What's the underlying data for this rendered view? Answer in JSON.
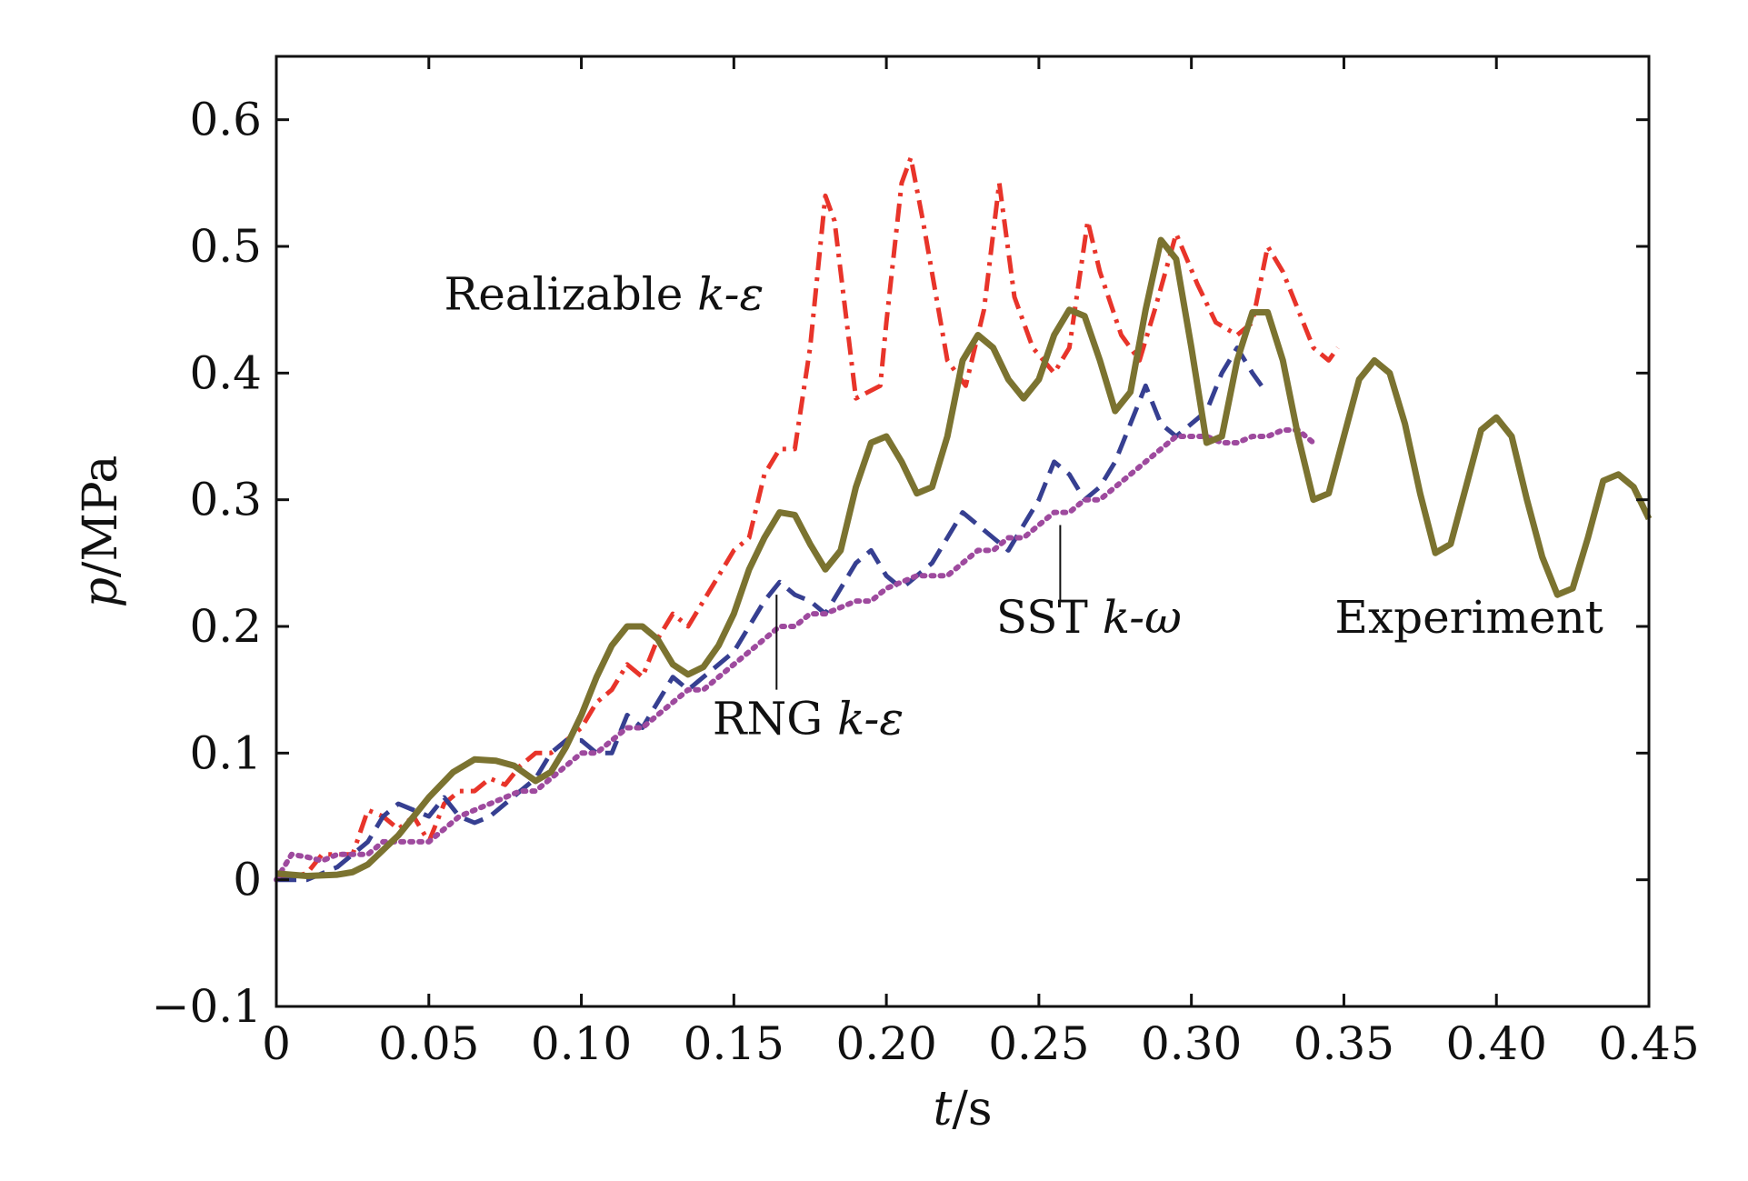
{
  "chart_data": {
    "type": "line",
    "xlabel": {
      "var": "t",
      "unit": "/s"
    },
    "ylabel": {
      "var": "p",
      "unit": "/MPa"
    },
    "xlim": [
      0,
      0.45
    ],
    "ylim": [
      -0.1,
      0.65
    ],
    "xticks": [
      0,
      0.05,
      0.1,
      0.15,
      0.2,
      0.25,
      0.3,
      0.35,
      0.4,
      0.45
    ],
    "xtick_labels": [
      "0",
      "0.05",
      "0.10",
      "0.15",
      "0.20",
      "0.25",
      "0.30",
      "0.35",
      "0.40",
      "0.45"
    ],
    "yticks": [
      -0.1,
      0,
      0.1,
      0.2,
      0.3,
      0.4,
      0.5,
      0.6
    ],
    "ytick_labels": [
      "−0.1",
      "0",
      "0.1",
      "0.2",
      "0.3",
      "0.4",
      "0.5",
      "0.6"
    ],
    "grid": false,
    "legend": "inline labels",
    "series": [
      {
        "name": "Realizable k-ε",
        "label": {
          "text": "Realizable ",
          "italic": "k-ε"
        },
        "color": "#e8342a",
        "style": "dashdot",
        "points": [
          [
            0,
            0
          ],
          [
            0.01,
            0.005
          ],
          [
            0.015,
            0.02
          ],
          [
            0.02,
            0.02
          ],
          [
            0.025,
            0.02
          ],
          [
            0.03,
            0.055
          ],
          [
            0.035,
            0.05
          ],
          [
            0.04,
            0.04
          ],
          [
            0.045,
            0.05
          ],
          [
            0.05,
            0.03
          ],
          [
            0.055,
            0.06
          ],
          [
            0.06,
            0.07
          ],
          [
            0.065,
            0.07
          ],
          [
            0.07,
            0.08
          ],
          [
            0.075,
            0.075
          ],
          [
            0.08,
            0.09
          ],
          [
            0.085,
            0.1
          ],
          [
            0.09,
            0.1
          ],
          [
            0.095,
            0.11
          ],
          [
            0.1,
            0.12
          ],
          [
            0.105,
            0.14
          ],
          [
            0.11,
            0.15
          ],
          [
            0.115,
            0.17
          ],
          [
            0.12,
            0.16
          ],
          [
            0.125,
            0.19
          ],
          [
            0.13,
            0.21
          ],
          [
            0.135,
            0.2
          ],
          [
            0.14,
            0.22
          ],
          [
            0.145,
            0.24
          ],
          [
            0.15,
            0.26
          ],
          [
            0.155,
            0.27
          ],
          [
            0.16,
            0.32
          ],
          [
            0.165,
            0.34
          ],
          [
            0.17,
            0.34
          ],
          [
            0.175,
            0.42
          ],
          [
            0.18,
            0.54
          ],
          [
            0.183,
            0.52
          ],
          [
            0.19,
            0.38
          ],
          [
            0.198,
            0.39
          ],
          [
            0.2,
            0.44
          ],
          [
            0.205,
            0.55
          ],
          [
            0.208,
            0.57
          ],
          [
            0.212,
            0.52
          ],
          [
            0.22,
            0.41
          ],
          [
            0.226,
            0.39
          ],
          [
            0.232,
            0.45
          ],
          [
            0.237,
            0.55
          ],
          [
            0.242,
            0.46
          ],
          [
            0.248,
            0.42
          ],
          [
            0.255,
            0.4
          ],
          [
            0.26,
            0.42
          ],
          [
            0.266,
            0.52
          ],
          [
            0.27,
            0.48
          ],
          [
            0.277,
            0.43
          ],
          [
            0.283,
            0.41
          ],
          [
            0.288,
            0.45
          ],
          [
            0.295,
            0.51
          ],
          [
            0.302,
            0.47
          ],
          [
            0.308,
            0.44
          ],
          [
            0.315,
            0.43
          ],
          [
            0.32,
            0.44
          ],
          [
            0.325,
            0.5
          ],
          [
            0.33,
            0.48
          ],
          [
            0.335,
            0.45
          ],
          [
            0.34,
            0.42
          ],
          [
            0.345,
            0.41
          ],
          [
            0.348,
            0.42
          ]
        ]
      },
      {
        "name": "RNG k-ε",
        "label": {
          "text": "RNG ",
          "italic": "k-ε"
        },
        "color": "#363f91",
        "style": "dashed",
        "points": [
          [
            0,
            0
          ],
          [
            0.01,
            0.0
          ],
          [
            0.02,
            0.01
          ],
          [
            0.03,
            0.03
          ],
          [
            0.035,
            0.05
          ],
          [
            0.04,
            0.06
          ],
          [
            0.045,
            0.055
          ],
          [
            0.05,
            0.05
          ],
          [
            0.055,
            0.065
          ],
          [
            0.06,
            0.05
          ],
          [
            0.065,
            0.045
          ],
          [
            0.07,
            0.05
          ],
          [
            0.075,
            0.06
          ],
          [
            0.08,
            0.07
          ],
          [
            0.085,
            0.08
          ],
          [
            0.09,
            0.1
          ],
          [
            0.095,
            0.11
          ],
          [
            0.1,
            0.11
          ],
          [
            0.105,
            0.1
          ],
          [
            0.11,
            0.1
          ],
          [
            0.115,
            0.13
          ],
          [
            0.12,
            0.12
          ],
          [
            0.125,
            0.14
          ],
          [
            0.13,
            0.16
          ],
          [
            0.135,
            0.15
          ],
          [
            0.14,
            0.16
          ],
          [
            0.145,
            0.17
          ],
          [
            0.15,
            0.18
          ],
          [
            0.155,
            0.2
          ],
          [
            0.16,
            0.22
          ],
          [
            0.165,
            0.235
          ],
          [
            0.17,
            0.225
          ],
          [
            0.175,
            0.22
          ],
          [
            0.18,
            0.21
          ],
          [
            0.185,
            0.23
          ],
          [
            0.19,
            0.25
          ],
          [
            0.195,
            0.26
          ],
          [
            0.2,
            0.24
          ],
          [
            0.205,
            0.23
          ],
          [
            0.21,
            0.24
          ],
          [
            0.215,
            0.25
          ],
          [
            0.22,
            0.27
          ],
          [
            0.225,
            0.29
          ],
          [
            0.23,
            0.28
          ],
          [
            0.235,
            0.27
          ],
          [
            0.24,
            0.26
          ],
          [
            0.245,
            0.28
          ],
          [
            0.25,
            0.3
          ],
          [
            0.255,
            0.33
          ],
          [
            0.26,
            0.32
          ],
          [
            0.265,
            0.3
          ],
          [
            0.27,
            0.31
          ],
          [
            0.275,
            0.33
          ],
          [
            0.28,
            0.36
          ],
          [
            0.285,
            0.39
          ],
          [
            0.29,
            0.36
          ],
          [
            0.295,
            0.35
          ],
          [
            0.3,
            0.36
          ],
          [
            0.305,
            0.37
          ],
          [
            0.31,
            0.4
          ],
          [
            0.315,
            0.42
          ],
          [
            0.32,
            0.4
          ],
          [
            0.323,
            0.39
          ]
        ]
      },
      {
        "name": "SST k-ω",
        "label": {
          "text": "SST ",
          "italic": "k-ω"
        },
        "color": "#9e4a9e",
        "style": "dotted",
        "points": [
          [
            0,
            0
          ],
          [
            0.005,
            0.02
          ],
          [
            0.01,
            0.018
          ],
          [
            0.015,
            0.015
          ],
          [
            0.02,
            0.02
          ],
          [
            0.025,
            0.02
          ],
          [
            0.03,
            0.02
          ],
          [
            0.035,
            0.03
          ],
          [
            0.04,
            0.03
          ],
          [
            0.045,
            0.03
          ],
          [
            0.05,
            0.03
          ],
          [
            0.055,
            0.04
          ],
          [
            0.06,
            0.05
          ],
          [
            0.065,
            0.055
          ],
          [
            0.07,
            0.06
          ],
          [
            0.075,
            0.065
          ],
          [
            0.08,
            0.07
          ],
          [
            0.085,
            0.07
          ],
          [
            0.09,
            0.08
          ],
          [
            0.095,
            0.09
          ],
          [
            0.1,
            0.1
          ],
          [
            0.105,
            0.1
          ],
          [
            0.11,
            0.11
          ],
          [
            0.115,
            0.12
          ],
          [
            0.12,
            0.12
          ],
          [
            0.125,
            0.13
          ],
          [
            0.13,
            0.14
          ],
          [
            0.135,
            0.15
          ],
          [
            0.14,
            0.15
          ],
          [
            0.145,
            0.16
          ],
          [
            0.15,
            0.17
          ],
          [
            0.155,
            0.18
          ],
          [
            0.16,
            0.19
          ],
          [
            0.165,
            0.2
          ],
          [
            0.17,
            0.2
          ],
          [
            0.175,
            0.21
          ],
          [
            0.18,
            0.21
          ],
          [
            0.185,
            0.215
          ],
          [
            0.19,
            0.22
          ],
          [
            0.195,
            0.22
          ],
          [
            0.2,
            0.23
          ],
          [
            0.205,
            0.235
          ],
          [
            0.21,
            0.24
          ],
          [
            0.215,
            0.24
          ],
          [
            0.22,
            0.24
          ],
          [
            0.225,
            0.25
          ],
          [
            0.23,
            0.26
          ],
          [
            0.235,
            0.26
          ],
          [
            0.24,
            0.27
          ],
          [
            0.245,
            0.27
          ],
          [
            0.25,
            0.28
          ],
          [
            0.255,
            0.29
          ],
          [
            0.26,
            0.29
          ],
          [
            0.265,
            0.3
          ],
          [
            0.27,
            0.3
          ],
          [
            0.275,
            0.31
          ],
          [
            0.28,
            0.32
          ],
          [
            0.285,
            0.33
          ],
          [
            0.29,
            0.34
          ],
          [
            0.295,
            0.35
          ],
          [
            0.3,
            0.35
          ],
          [
            0.305,
            0.35
          ],
          [
            0.31,
            0.345
          ],
          [
            0.315,
            0.345
          ],
          [
            0.32,
            0.35
          ],
          [
            0.325,
            0.35
          ],
          [
            0.33,
            0.355
          ],
          [
            0.335,
            0.355
          ],
          [
            0.34,
            0.345
          ]
        ]
      },
      {
        "name": "Experiment",
        "label": {
          "text": "Experiment",
          "italic": ""
        },
        "color": "#7b7330",
        "style": "solid",
        "points": [
          [
            0,
            0.005
          ],
          [
            0.01,
            0.003
          ],
          [
            0.02,
            0.004
          ],
          [
            0.025,
            0.006
          ],
          [
            0.03,
            0.012
          ],
          [
            0.04,
            0.035
          ],
          [
            0.05,
            0.065
          ],
          [
            0.058,
            0.085
          ],
          [
            0.065,
            0.095
          ],
          [
            0.072,
            0.094
          ],
          [
            0.078,
            0.09
          ],
          [
            0.085,
            0.078
          ],
          [
            0.09,
            0.085
          ],
          [
            0.095,
            0.105
          ],
          [
            0.1,
            0.13
          ],
          [
            0.105,
            0.16
          ],
          [
            0.11,
            0.185
          ],
          [
            0.115,
            0.2
          ],
          [
            0.12,
            0.2
          ],
          [
            0.125,
            0.19
          ],
          [
            0.13,
            0.17
          ],
          [
            0.135,
            0.162
          ],
          [
            0.14,
            0.168
          ],
          [
            0.145,
            0.185
          ],
          [
            0.15,
            0.21
          ],
          [
            0.155,
            0.245
          ],
          [
            0.16,
            0.27
          ],
          [
            0.165,
            0.29
          ],
          [
            0.17,
            0.288
          ],
          [
            0.175,
            0.265
          ],
          [
            0.18,
            0.245
          ],
          [
            0.185,
            0.26
          ],
          [
            0.19,
            0.31
          ],
          [
            0.195,
            0.345
          ],
          [
            0.2,
            0.35
          ],
          [
            0.205,
            0.33
          ],
          [
            0.21,
            0.305
          ],
          [
            0.215,
            0.31
          ],
          [
            0.22,
            0.35
          ],
          [
            0.225,
            0.41
          ],
          [
            0.23,
            0.43
          ],
          [
            0.235,
            0.42
          ],
          [
            0.24,
            0.395
          ],
          [
            0.245,
            0.38
          ],
          [
            0.25,
            0.395
          ],
          [
            0.255,
            0.43
          ],
          [
            0.26,
            0.45
          ],
          [
            0.265,
            0.445
          ],
          [
            0.27,
            0.41
          ],
          [
            0.275,
            0.37
          ],
          [
            0.28,
            0.385
          ],
          [
            0.285,
            0.45
          ],
          [
            0.29,
            0.505
          ],
          [
            0.295,
            0.49
          ],
          [
            0.3,
            0.42
          ],
          [
            0.305,
            0.345
          ],
          [
            0.31,
            0.35
          ],
          [
            0.315,
            0.41
          ],
          [
            0.32,
            0.448
          ],
          [
            0.325,
            0.448
          ],
          [
            0.33,
            0.41
          ],
          [
            0.335,
            0.35
          ],
          [
            0.34,
            0.3
          ],
          [
            0.345,
            0.305
          ],
          [
            0.35,
            0.35
          ],
          [
            0.355,
            0.395
          ],
          [
            0.36,
            0.41
          ],
          [
            0.365,
            0.4
          ],
          [
            0.37,
            0.36
          ],
          [
            0.375,
            0.305
          ],
          [
            0.38,
            0.258
          ],
          [
            0.385,
            0.265
          ],
          [
            0.39,
            0.31
          ],
          [
            0.395,
            0.355
          ],
          [
            0.4,
            0.365
          ],
          [
            0.405,
            0.35
          ],
          [
            0.41,
            0.3
          ],
          [
            0.415,
            0.255
          ],
          [
            0.42,
            0.225
          ],
          [
            0.425,
            0.23
          ],
          [
            0.43,
            0.27
          ],
          [
            0.435,
            0.315
          ],
          [
            0.44,
            0.32
          ],
          [
            0.445,
            0.31
          ],
          [
            0.45,
            0.285
          ]
        ]
      }
    ]
  }
}
